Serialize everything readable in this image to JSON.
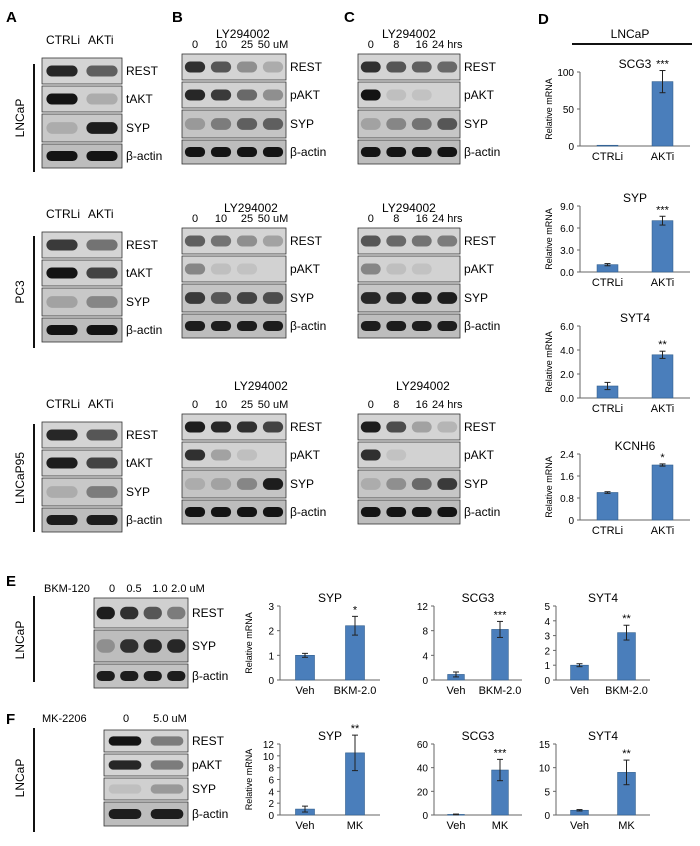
{
  "panels": {
    "A": "A",
    "B": "B",
    "C": "C",
    "D": "D",
    "E": "E",
    "F": "F"
  },
  "blots": {
    "A": {
      "col_labels": [
        "CTRLi",
        "AKTi"
      ],
      "cells": [
        {
          "name": "LNCaP",
          "rows": [
            "REST",
            "tAKT",
            "SYP",
            "β-actin"
          ]
        },
        {
          "name": "PC3",
          "rows": [
            "REST",
            "tAKT",
            "SYP",
            "β-actin"
          ]
        },
        {
          "name": "LNCaP95",
          "rows": [
            "REST",
            "tAKT",
            "SYP",
            "β-actin"
          ]
        }
      ]
    },
    "B": {
      "treatment": "LY294002",
      "doses": [
        "0",
        "10",
        "25",
        "50 uM"
      ],
      "rows": [
        "REST",
        "pAKT",
        "SYP",
        "β-actin"
      ]
    },
    "C": {
      "treatment": "LY294002",
      "times": [
        "0",
        "8",
        "16",
        "24 hrs"
      ],
      "rows": [
        "REST",
        "pAKT",
        "SYP",
        "β-actin"
      ]
    },
    "E": {
      "treatment": "BKM-120",
      "doses": [
        "0",
        "0.5",
        "1.0",
        "2.0 uM"
      ],
      "cell_line": "LNCaP",
      "rows": [
        "REST",
        "SYP",
        "β-actin"
      ]
    },
    "F": {
      "treatment": "MK-2206",
      "doses": [
        "0",
        "5.0 uM"
      ],
      "cell_line": "LNCaP",
      "rows": [
        "REST",
        "pAKT",
        "SYP",
        "β-actin"
      ]
    }
  },
  "panel_d_header": "LNCaP",
  "ylabel": "Relative mRNA",
  "bar_color": "#4a7ebb",
  "chart_data": [
    {
      "id": "D1",
      "type": "bar",
      "title": "SCG3",
      "categories": [
        "CTRLi",
        "AKTi"
      ],
      "values": [
        1,
        87
      ],
      "errors": [
        0,
        15
      ],
      "stars": [
        "",
        "***"
      ],
      "ylim": [
        0,
        100
      ],
      "yticks": [
        "0",
        "50",
        "100"
      ],
      "ytick_vals": [
        0,
        50,
        100
      ]
    },
    {
      "id": "D2",
      "type": "bar",
      "title": "SYP",
      "categories": [
        "CTRLi",
        "AKTi"
      ],
      "values": [
        1.0,
        7.0
      ],
      "errors": [
        0.15,
        0.6
      ],
      "stars": [
        "",
        "***"
      ],
      "ylim": [
        0,
        9
      ],
      "yticks": [
        "0.0",
        "3.0",
        "6.0",
        "9.0"
      ],
      "ytick_vals": [
        0,
        3,
        6,
        9
      ]
    },
    {
      "id": "D3",
      "type": "bar",
      "title": "SYT4",
      "categories": [
        "CTRLi",
        "AKTi"
      ],
      "values": [
        1.0,
        3.6
      ],
      "errors": [
        0.3,
        0.3
      ],
      "stars": [
        "",
        "**"
      ],
      "ylim": [
        0,
        6
      ],
      "yticks": [
        "0.0",
        "2.0",
        "4.0",
        "6.0"
      ],
      "ytick_vals": [
        0,
        2,
        4,
        6
      ]
    },
    {
      "id": "D4",
      "type": "bar",
      "title": "KCNH6",
      "categories": [
        "CTRLi",
        "AKTi"
      ],
      "values": [
        1.0,
        2.0
      ],
      "errors": [
        0.03,
        0.04
      ],
      "stars": [
        "",
        "*"
      ],
      "ylim": [
        0,
        2.4
      ],
      "yticks": [
        "0",
        "0.8",
        "1.6",
        "2.4"
      ],
      "ytick_vals": [
        0,
        0.8,
        1.6,
        2.4
      ]
    },
    {
      "id": "E1",
      "type": "bar",
      "title": "SYP",
      "categories": [
        "Veh",
        "BKM-2.0"
      ],
      "values": [
        1.0,
        2.2
      ],
      "errors": [
        0.08,
        0.38
      ],
      "stars": [
        "",
        "*"
      ],
      "ylim": [
        0,
        3
      ],
      "yticks": [
        "0",
        "1",
        "2",
        "3"
      ],
      "ytick_vals": [
        0,
        1,
        2,
        3
      ]
    },
    {
      "id": "E2",
      "type": "bar",
      "title": "SCG3",
      "categories": [
        "Veh",
        "BKM-2.0"
      ],
      "values": [
        0.9,
        8.2
      ],
      "errors": [
        0.4,
        1.3
      ],
      "stars": [
        "",
        "***"
      ],
      "ylim": [
        0,
        12
      ],
      "yticks": [
        "0",
        "4",
        "8",
        "12"
      ],
      "ytick_vals": [
        0,
        4,
        8,
        12
      ]
    },
    {
      "id": "E3",
      "type": "bar",
      "title": "SYT4",
      "categories": [
        "Veh",
        "BKM-2.0"
      ],
      "values": [
        1.0,
        3.2
      ],
      "errors": [
        0.1,
        0.5
      ],
      "stars": [
        "",
        "**"
      ],
      "ylim": [
        0,
        5
      ],
      "yticks": [
        "0",
        "1",
        "2",
        "3",
        "4",
        "5"
      ],
      "ytick_vals": [
        0,
        1,
        2,
        3,
        4,
        5
      ]
    },
    {
      "id": "F1",
      "type": "bar",
      "title": "SYP",
      "categories": [
        "Veh",
        "MK"
      ],
      "values": [
        1.0,
        10.5
      ],
      "errors": [
        0.5,
        3.0
      ],
      "stars": [
        "",
        "**"
      ],
      "ylim": [
        0,
        12
      ],
      "yticks": [
        "0",
        "2",
        "4",
        "6",
        "8",
        "10",
        "12"
      ],
      "ytick_vals": [
        0,
        2,
        4,
        6,
        8,
        10,
        12
      ]
    },
    {
      "id": "F2",
      "type": "bar",
      "title": "SCG3",
      "categories": [
        "Veh",
        "MK"
      ],
      "values": [
        0.5,
        38
      ],
      "errors": [
        0.3,
        9
      ],
      "stars": [
        "",
        "***"
      ],
      "ylim": [
        0,
        60
      ],
      "yticks": [
        "0",
        "20",
        "40",
        "60"
      ],
      "ytick_vals": [
        0,
        20,
        40,
        60
      ]
    },
    {
      "id": "F3",
      "type": "bar",
      "title": "SYT4",
      "categories": [
        "Veh",
        "MK"
      ],
      "values": [
        1.0,
        9.0
      ],
      "errors": [
        0.15,
        2.6
      ],
      "stars": [
        "",
        "**"
      ],
      "ylim": [
        0,
        15
      ],
      "yticks": [
        "0",
        "5",
        "10",
        "15"
      ],
      "ytick_vals": [
        0,
        5,
        10,
        15
      ]
    }
  ]
}
